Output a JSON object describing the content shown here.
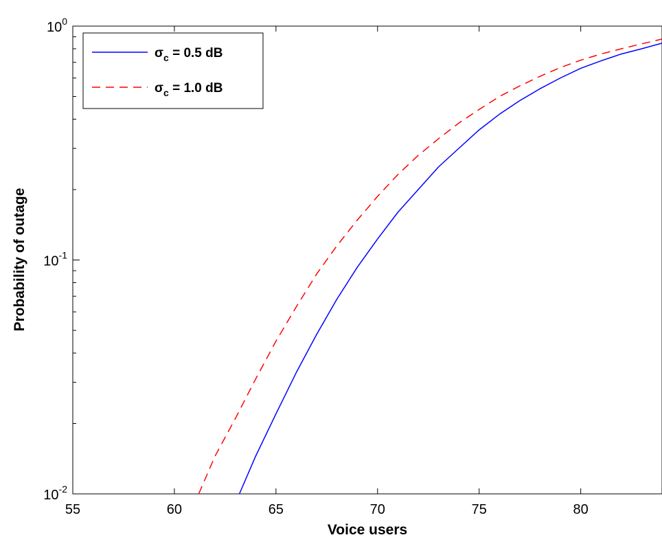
{
  "chart_data": {
    "type": "line",
    "title": "",
    "xlabel": "Voice users",
    "ylabel": "Probability of outage",
    "xlim": [
      55,
      84
    ],
    "ylim": [
      0.01,
      1
    ],
    "y_scale": "log",
    "grid": false,
    "legend_position": "top-left",
    "x_ticks": [
      55,
      60,
      65,
      70,
      75,
      80
    ],
    "y_ticks": [
      {
        "value": 0.01,
        "base": "10",
        "exponent": "-2"
      },
      {
        "value": 0.1,
        "base": "10",
        "exponent": "-1"
      },
      {
        "value": 1,
        "base": "10",
        "exponent": "0"
      }
    ],
    "series": [
      {
        "name_symbol": "σ",
        "name_subscript": "c",
        "name_rest": " = 0.5 dB",
        "color": "#0000ff",
        "dash": "solid",
        "x": [
          63.2,
          64,
          65,
          66,
          67,
          68,
          69,
          70,
          71,
          72,
          73,
          74,
          75,
          76,
          77,
          78,
          79,
          80,
          81,
          82,
          83,
          84
        ],
        "y": [
          0.01,
          0.0145,
          0.022,
          0.033,
          0.048,
          0.068,
          0.093,
          0.123,
          0.16,
          0.2,
          0.25,
          0.3,
          0.36,
          0.42,
          0.48,
          0.54,
          0.6,
          0.66,
          0.71,
          0.76,
          0.8,
          0.845
        ]
      },
      {
        "name_symbol": "σ",
        "name_subscript": "c",
        "name_rest": " = 1.0 dB",
        "color": "#ff0000",
        "dash": "dashed",
        "x": [
          61.2,
          62,
          63,
          64,
          65,
          66,
          67,
          68,
          69,
          70,
          71,
          72,
          73,
          74,
          75,
          76,
          77,
          78,
          79,
          80,
          81,
          82,
          83,
          84
        ],
        "y": [
          0.01,
          0.0145,
          0.021,
          0.031,
          0.045,
          0.063,
          0.087,
          0.115,
          0.148,
          0.187,
          0.232,
          0.28,
          0.33,
          0.385,
          0.44,
          0.5,
          0.555,
          0.61,
          0.665,
          0.715,
          0.76,
          0.8,
          0.84,
          0.88
        ]
      }
    ]
  }
}
